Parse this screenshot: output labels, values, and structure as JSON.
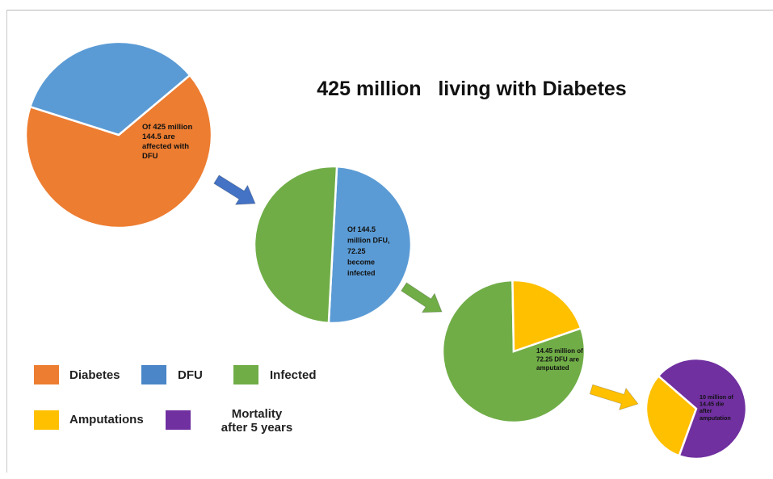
{
  "chart_data": {
    "type": "pie",
    "title": "425 million   living with Diabetes",
    "pies": [
      {
        "slices": [
          {
            "name": "Diabetes",
            "value": 280.5,
            "color": "#ED7D31"
          },
          {
            "name": "DFU",
            "value": 144.5,
            "color": "#5B9BD5"
          }
        ],
        "label_lines": [
          "Of 425  million",
          "144.5  are",
          "affected with",
          "DFU"
        ]
      },
      {
        "slices": [
          {
            "name": "DFU",
            "value": 72.25,
            "color": "#5B9BD5"
          },
          {
            "name": "Infected",
            "value": 72.25,
            "color": "#70AD47"
          }
        ],
        "label_lines": [
          "Of 144.5",
          "million DFU,",
          "72.25",
          "become",
          "infected"
        ]
      },
      {
        "slices": [
          {
            "name": "Infected",
            "value": 57.8,
            "color": "#70AD47"
          },
          {
            "name": "Amputations",
            "value": 14.45,
            "color": "#FFC000"
          }
        ],
        "label_lines": [
          "14.45 million of",
          "72.25 DFU  are",
          "amputated"
        ]
      },
      {
        "slices": [
          {
            "name": "Amputations",
            "value": 4.45,
            "color": "#FFC000"
          },
          {
            "name": "Mortality after 5 years",
            "value": 10,
            "color": "#7030A0"
          }
        ],
        "label_lines": [
          "10 million of",
          "14.45  die",
          "after",
          "amputation"
        ]
      }
    ],
    "legend": [
      {
        "lines": [
          "Diabetes"
        ],
        "color": "#ED7D31"
      },
      {
        "lines": [
          "DFU"
        ],
        "color": "#4A86C8"
      },
      {
        "lines": [
          "Infected"
        ],
        "color": "#70AD47"
      },
      {
        "lines": [
          "Amputations"
        ],
        "color": "#FFC000"
      },
      {
        "lines": [
          "Mortality",
          "after 5 years"
        ],
        "color": "#7030A0"
      }
    ],
    "arrow_colors": [
      "#4472C4",
      "#70AD47",
      "#FFC000"
    ]
  }
}
